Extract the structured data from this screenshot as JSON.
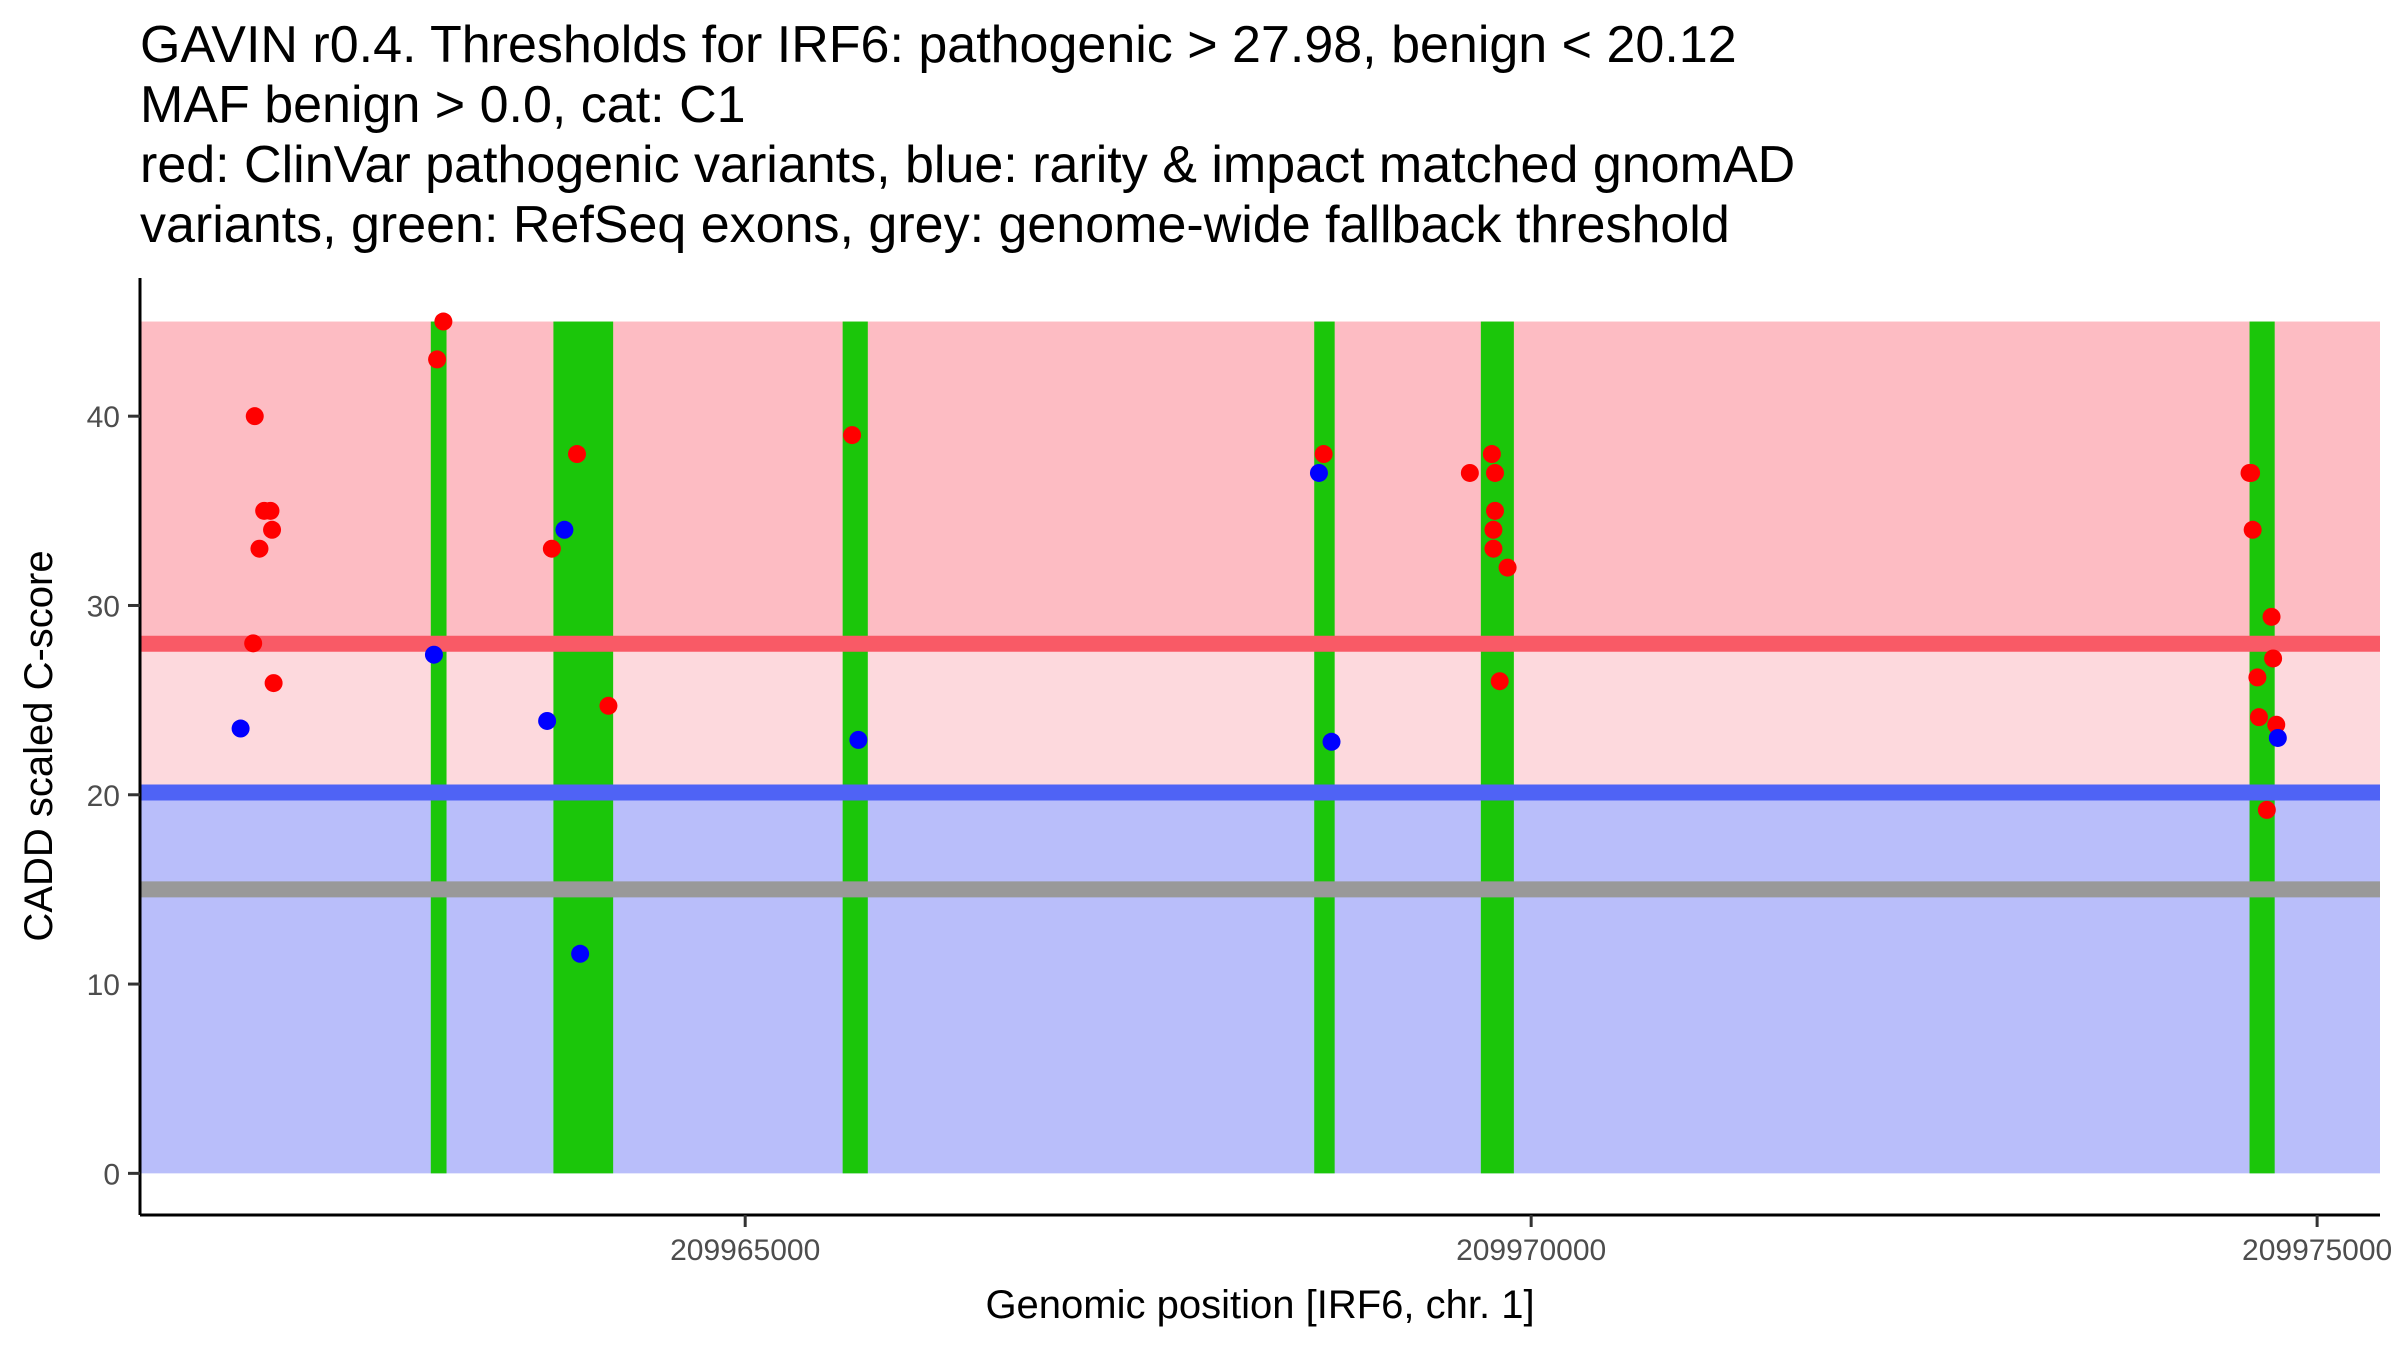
{
  "chart_data": {
    "type": "scatter",
    "title_lines": [
      "GAVIN r0.4. Thresholds for IRF6: pathogenic > 27.98, benign < 20.12",
      "MAF benign > 0.0, cat: C1",
      "red: ClinVar pathogenic variants, blue: rarity & impact matched gnomAD",
      "variants, green: RefSeq exons, grey: genome-wide fallback threshold"
    ],
    "xlabel": "Genomic position [IRF6, chr. 1]",
    "ylabel": "CADD scaled C-score",
    "xlim": [
      209961150,
      209975400
    ],
    "ylim": [
      -2.2,
      47.3
    ],
    "x_ticks": [
      209965000,
      209970000,
      209975000
    ],
    "x_tick_labels": [
      "209965000",
      "209970000",
      "209975000"
    ],
    "y_ticks": [
      0,
      10,
      20,
      30,
      40
    ],
    "y_tick_labels": [
      "0",
      "10",
      "20",
      "30",
      "40"
    ],
    "grid": false,
    "thresholds": {
      "pathogenic": 27.98,
      "benign": 20.12,
      "fallback": 15.0,
      "max_score": 45
    },
    "colors": {
      "pathogenic_region": "#fdbcc3",
      "middle_region": "#fdd9dd",
      "benign_region": "#b9befa",
      "pathogenic_line": "#f95a66",
      "benign_line": "#4f63f5",
      "fallback_line": "#999999",
      "exon": "#1bc60a",
      "pathogenic_point": "#ff0000",
      "benign_point": "#0000ff"
    },
    "exons": [
      {
        "start": 209963000,
        "end": 209963100
      },
      {
        "start": 209963780,
        "end": 209964160
      },
      {
        "start": 209965620,
        "end": 209965780
      },
      {
        "start": 209968620,
        "end": 209968750
      },
      {
        "start": 209969680,
        "end": 209969890
      },
      {
        "start": 209974570,
        "end": 209974730
      }
    ],
    "series": [
      {
        "name": "ClinVar pathogenic",
        "color": "#ff0000",
        "points": [
          {
            "x": 209961880,
            "y": 40.0
          },
          {
            "x": 209961940,
            "y": 35.0
          },
          {
            "x": 209961980,
            "y": 35.0
          },
          {
            "x": 209961990,
            "y": 34.0
          },
          {
            "x": 209961910,
            "y": 33.0
          },
          {
            "x": 209961870,
            "y": 28.0
          },
          {
            "x": 209962000,
            "y": 25.9
          },
          {
            "x": 209963080,
            "y": 45.0
          },
          {
            "x": 209963040,
            "y": 43.0
          },
          {
            "x": 209963770,
            "y": 33.0
          },
          {
            "x": 209963930,
            "y": 38.0
          },
          {
            "x": 209964130,
            "y": 24.7
          },
          {
            "x": 209965680,
            "y": 39.0
          },
          {
            "x": 209968680,
            "y": 38.0
          },
          {
            "x": 209969610,
            "y": 37.0
          },
          {
            "x": 209969750,
            "y": 38.0
          },
          {
            "x": 209969770,
            "y": 37.0
          },
          {
            "x": 209969770,
            "y": 35.0
          },
          {
            "x": 209969760,
            "y": 34.0
          },
          {
            "x": 209969760,
            "y": 33.0
          },
          {
            "x": 209969850,
            "y": 32.0
          },
          {
            "x": 209969800,
            "y": 26.0
          },
          {
            "x": 209974570,
            "y": 37.0
          },
          {
            "x": 209974580,
            "y": 37.0
          },
          {
            "x": 209974590,
            "y": 34.0
          },
          {
            "x": 209974710,
            "y": 29.4
          },
          {
            "x": 209974720,
            "y": 27.2
          },
          {
            "x": 209974620,
            "y": 26.2
          },
          {
            "x": 209974630,
            "y": 24.1
          },
          {
            "x": 209974740,
            "y": 23.7
          },
          {
            "x": 209974680,
            "y": 19.2
          }
        ]
      },
      {
        "name": "gnomAD rarity & impact matched",
        "color": "#0000ff",
        "points": [
          {
            "x": 209961790,
            "y": 23.5
          },
          {
            "x": 209963020,
            "y": 27.4
          },
          {
            "x": 209963740,
            "y": 23.9
          },
          {
            "x": 209963850,
            "y": 34.0
          },
          {
            "x": 209963950,
            "y": 11.6
          },
          {
            "x": 209965720,
            "y": 22.9
          },
          {
            "x": 209968650,
            "y": 37.0
          },
          {
            "x": 209968730,
            "y": 22.8
          },
          {
            "x": 209974750,
            "y": 23.0
          }
        ]
      }
    ]
  }
}
